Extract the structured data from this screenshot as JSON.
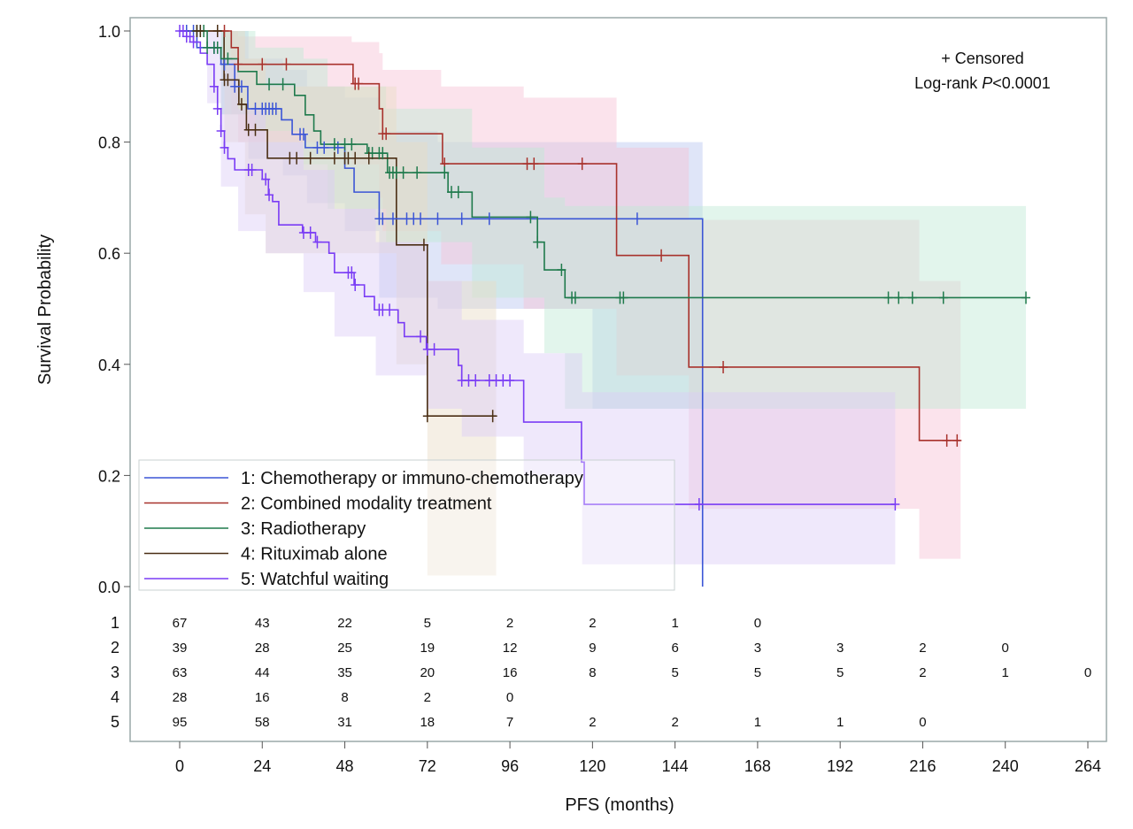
{
  "chart_data": {
    "type": "line",
    "subtype": "kaplan-meier",
    "xlabel": "PFS (months)",
    "ylabel": "Survival Probability",
    "xlim": [
      0,
      264
    ],
    "ylim": [
      0,
      1
    ],
    "xticks": [
      0,
      24,
      48,
      72,
      96,
      120,
      144,
      168,
      192,
      216,
      240,
      264
    ],
    "yticks": [
      "0.0",
      "0.2",
      "0.4",
      "0.6",
      "0.8",
      "1.0"
    ],
    "annotations": [
      "+ Censored",
      "Log-rank ",
      "P",
      "<0.0001"
    ],
    "legend_position": "bottom-left",
    "series": [
      {
        "id": "1",
        "name": "1: Chemotherapy or immuno-chemotherapy",
        "color": "#3b55d6",
        "band": "#b9c6f0",
        "steps": [
          [
            0,
            1
          ],
          [
            5,
            0.97
          ],
          [
            12,
            0.94
          ],
          [
            16,
            0.9
          ],
          [
            19.8,
            0.86
          ],
          [
            29.6,
            0.84
          ],
          [
            32.7,
            0.814
          ],
          [
            36.5,
            0.79
          ],
          [
            48,
            0.753
          ],
          [
            50.7,
            0.71
          ],
          [
            58,
            0.662
          ],
          [
            152,
            0
          ]
        ],
        "end": 152,
        "ci": [
          [
            0,
            1,
            1
          ],
          [
            12,
            0.85,
            1
          ],
          [
            20,
            0.77,
            0.95
          ],
          [
            30,
            0.74,
            0.93
          ],
          [
            37,
            0.69,
            0.9
          ],
          [
            48,
            0.64,
            0.88
          ],
          [
            58,
            0.52,
            0.82
          ],
          [
            75,
            0.5,
            0.8
          ],
          [
            120,
            0.32,
            0.8
          ]
        ],
        "censored": [
          2,
          4,
          10,
          13,
          16,
          18,
          22,
          24,
          25,
          26,
          27,
          28,
          35,
          36,
          40,
          42,
          46,
          58,
          59,
          62,
          66,
          68,
          70,
          75,
          82,
          90,
          133
        ]
      },
      {
        "id": "2",
        "name": "2: Combined modality treatment",
        "color": "#a8322c",
        "band": "#f6c2d4",
        "steps": [
          [
            0,
            1
          ],
          [
            15,
            0.97
          ],
          [
            17,
            0.94
          ],
          [
            50.4,
            0.905
          ],
          [
            58,
            0.86
          ],
          [
            59,
            0.815
          ],
          [
            76.4,
            0.761
          ],
          [
            127,
            0.596
          ],
          [
            148,
            0.395
          ],
          [
            215,
            0.263
          ]
        ],
        "end": 227,
        "ci": [
          [
            0,
            1,
            1
          ],
          [
            15,
            0.85,
            1
          ],
          [
            17,
            0.8,
            0.99
          ],
          [
            50,
            0.76,
            0.98
          ],
          [
            58,
            0.7,
            0.96
          ],
          [
            59,
            0.64,
            0.93
          ],
          [
            76,
            0.58,
            0.9
          ],
          [
            100,
            0.5,
            0.88
          ],
          [
            127,
            0.38,
            0.79
          ],
          [
            148,
            0.14,
            0.66
          ],
          [
            215,
            0.05,
            0.55
          ]
        ],
        "censored": [
          13,
          17,
          24,
          31,
          51,
          52,
          59,
          60,
          77,
          101,
          103,
          117,
          140,
          158,
          223,
          226
        ]
      },
      {
        "id": "3",
        "name": "3: Radiotherapy",
        "color": "#1f7a4c",
        "band": "#bfe8d4",
        "steps": [
          [
            0,
            1
          ],
          [
            8,
            0.97
          ],
          [
            12,
            0.95
          ],
          [
            17,
            0.927
          ],
          [
            22.4,
            0.904
          ],
          [
            33.4,
            0.884
          ],
          [
            36.5,
            0.849
          ],
          [
            39,
            0.82
          ],
          [
            41,
            0.796
          ],
          [
            54.5,
            0.78
          ],
          [
            60.4,
            0.745
          ],
          [
            78,
            0.71
          ],
          [
            85,
            0.665
          ],
          [
            104,
            0.62
          ],
          [
            106,
            0.57
          ],
          [
            112,
            0.52
          ]
        ],
        "end": 246,
        "ci": [
          [
            0,
            1,
            1
          ],
          [
            12,
            0.85,
            1
          ],
          [
            22,
            0.82,
            0.97
          ],
          [
            36,
            0.76,
            0.95
          ],
          [
            43,
            0.68,
            0.9
          ],
          [
            60,
            0.62,
            0.86
          ],
          [
            85,
            0.52,
            0.79
          ],
          [
            106,
            0.42,
            0.7
          ],
          [
            112,
            0.32,
            0.685
          ]
        ],
        "censored": [
          5,
          6,
          7,
          8,
          10,
          11,
          14,
          26,
          30,
          45,
          48,
          50,
          55,
          56,
          58,
          59,
          61,
          62,
          63,
          65,
          69,
          77,
          79,
          81,
          102,
          104,
          111,
          114,
          115,
          128,
          129,
          206,
          209,
          213,
          222,
          246
        ]
      },
      {
        "id": "4",
        "name": "4: Rituximab alone",
        "color": "#4a2e14",
        "band": "#e8dcc6",
        "steps": [
          [
            0,
            1
          ],
          [
            12.9,
            0.912
          ],
          [
            17.2,
            0.868
          ],
          [
            19.4,
            0.822
          ],
          [
            25.5,
            0.771
          ],
          [
            63,
            0.615
          ],
          [
            72,
            0.307
          ]
        ],
        "end": 92,
        "ci": [
          [
            0,
            1,
            1
          ],
          [
            13,
            0.8,
            1
          ],
          [
            19,
            0.67,
            0.95
          ],
          [
            25,
            0.6,
            0.9
          ],
          [
            63,
            0.4,
            0.8
          ],
          [
            72,
            0.02,
            0.55
          ]
        ],
        "censored": [
          5,
          6,
          11,
          13,
          14,
          18,
          20,
          22,
          32,
          34,
          38,
          45,
          48,
          49,
          51,
          55,
          71,
          72,
          91
        ]
      },
      {
        "id": "5",
        "name": "5: Watchful waiting",
        "color": "#7a3cf5",
        "band": "#dccdf7",
        "steps": [
          [
            0,
            1
          ],
          [
            2,
            0.99
          ],
          [
            4,
            0.98
          ],
          [
            6,
            0.96
          ],
          [
            8,
            0.94
          ],
          [
            10,
            0.9
          ],
          [
            11,
            0.86
          ],
          [
            12,
            0.82
          ],
          [
            13,
            0.79
          ],
          [
            14,
            0.77
          ],
          [
            16,
            0.75
          ],
          [
            24,
            0.733
          ],
          [
            25.8,
            0.705
          ],
          [
            27,
            0.693
          ],
          [
            28.8,
            0.651
          ],
          [
            35.7,
            0.637
          ],
          [
            39.5,
            0.62
          ],
          [
            43.4,
            0.6
          ],
          [
            45,
            0.565
          ],
          [
            50.7,
            0.543
          ],
          [
            53.7,
            0.522
          ],
          [
            56.6,
            0.498
          ],
          [
            63.5,
            0.475
          ],
          [
            65.3,
            0.45
          ],
          [
            71.7,
            0.427
          ],
          [
            81,
            0.398
          ],
          [
            82,
            0.371
          ],
          [
            100,
            0.296
          ],
          [
            116.8,
            0.224
          ],
          [
            117.6,
            0.148
          ]
        ],
        "end": 208,
        "ci": [
          [
            0,
            1,
            1
          ],
          [
            8,
            0.87,
            1
          ],
          [
            12,
            0.72,
            0.95
          ],
          [
            17,
            0.64,
            0.86
          ],
          [
            25,
            0.6,
            0.8
          ],
          [
            36,
            0.53,
            0.75
          ],
          [
            45,
            0.45,
            0.68
          ],
          [
            57,
            0.38,
            0.62
          ],
          [
            72,
            0.32,
            0.55
          ],
          [
            82,
            0.27,
            0.48
          ],
          [
            100,
            0.2,
            0.42
          ],
          [
            117,
            0.04,
            0.35
          ]
        ],
        "censored": [
          0,
          1,
          2,
          3,
          4,
          10,
          11,
          12,
          13,
          20,
          21,
          25,
          26,
          36,
          38,
          40,
          49,
          50,
          51,
          58,
          59,
          61,
          70,
          72,
          74,
          82,
          84,
          86,
          90,
          92,
          94,
          96,
          151,
          208
        ]
      }
    ],
    "risk_table": {
      "times": [
        0,
        24,
        48,
        72,
        96,
        120,
        144,
        168,
        192,
        216,
        240,
        264
      ],
      "rows": [
        {
          "label": "1",
          "values": [
            "67",
            "43",
            "22",
            "5",
            "2",
            "2",
            "1",
            "0"
          ]
        },
        {
          "label": "2",
          "values": [
            "39",
            "28",
            "25",
            "19",
            "12",
            "9",
            "6",
            "3",
            "3",
            "2",
            "0"
          ]
        },
        {
          "label": "3",
          "values": [
            "63",
            "44",
            "35",
            "20",
            "16",
            "8",
            "5",
            "5",
            "5",
            "2",
            "1",
            "0"
          ]
        },
        {
          "label": "4",
          "values": [
            "28",
            "16",
            "8",
            "2",
            "0"
          ]
        },
        {
          "label": "5",
          "values": [
            "95",
            "58",
            "31",
            "18",
            "7",
            "2",
            "2",
            "1",
            "1",
            "0"
          ]
        }
      ]
    }
  }
}
